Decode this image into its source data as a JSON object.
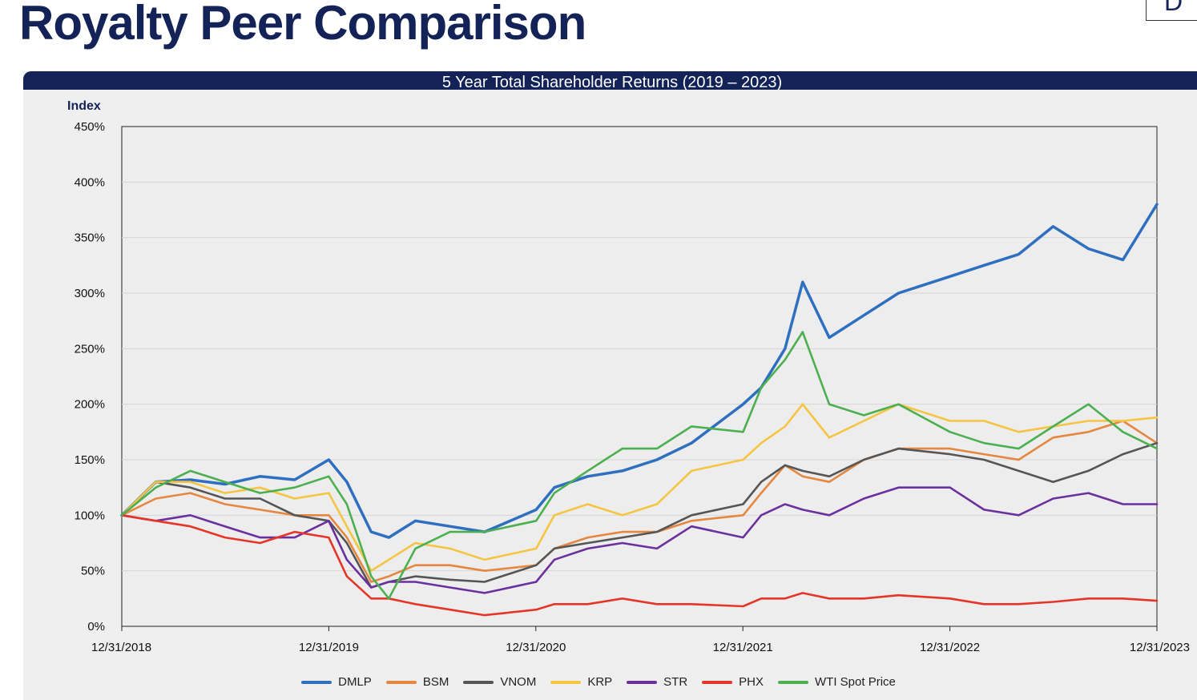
{
  "page": {
    "title": "Royalty Peer Comparison",
    "logo_text": "D"
  },
  "chart_data": {
    "type": "line",
    "title": "5 Year Total Shareholder Returns (2019 – 2023)",
    "ylabel": "Index",
    "xlabel": "",
    "ylim": [
      0,
      450
    ],
    "yticks": [
      "0%",
      "50%",
      "100%",
      "150%",
      "200%",
      "250%",
      "300%",
      "350%",
      "400%",
      "450%"
    ],
    "xlim": [
      "2018-12-31",
      "2023-12-31"
    ],
    "xticks": [
      "12/31/2018",
      "12/31/2019",
      "12/31/2020",
      "12/31/2021",
      "12/31/2022",
      "12/31/2023"
    ],
    "grid": "horizontal",
    "legend": "bottom",
    "x": [
      "2018-12-31",
      "2019-03-01",
      "2019-05-01",
      "2019-07-01",
      "2019-09-01",
      "2019-11-01",
      "2019-12-31",
      "2020-02-01",
      "2020-03-15",
      "2020-04-15",
      "2020-06-01",
      "2020-08-01",
      "2020-10-01",
      "2020-12-31",
      "2021-02-01",
      "2021-04-01",
      "2021-06-01",
      "2021-08-01",
      "2021-10-01",
      "2021-12-31",
      "2022-02-01",
      "2022-03-15",
      "2022-04-15",
      "2022-06-01",
      "2022-08-01",
      "2022-10-01",
      "2022-12-31",
      "2023-03-01",
      "2023-05-01",
      "2023-07-01",
      "2023-09-01",
      "2023-11-01",
      "2023-12-31"
    ],
    "series": [
      {
        "name": "DMLP",
        "color": "#2f6fc0",
        "values": [
          100,
          130,
          132,
          128,
          135,
          132,
          150,
          130,
          85,
          80,
          95,
          90,
          85,
          105,
          125,
          135,
          140,
          150,
          165,
          200,
          215,
          250,
          310,
          260,
          280,
          300,
          315,
          325,
          335,
          360,
          340,
          330,
          380
        ]
      },
      {
        "name": "BSM",
        "color": "#e5873f",
        "values": [
          100,
          115,
          120,
          110,
          105,
          100,
          100,
          80,
          40,
          45,
          55,
          55,
          50,
          55,
          70,
          80,
          85,
          85,
          95,
          100,
          120,
          145,
          135,
          130,
          150,
          160,
          160,
          155,
          150,
          170,
          175,
          185,
          165
        ]
      },
      {
        "name": "VNOM",
        "color": "#555555",
        "values": [
          100,
          130,
          125,
          115,
          115,
          100,
          95,
          75,
          35,
          40,
          45,
          42,
          40,
          55,
          70,
          75,
          80,
          85,
          100,
          110,
          130,
          145,
          140,
          135,
          150,
          160,
          155,
          150,
          140,
          130,
          140,
          155,
          165
        ]
      },
      {
        "name": "KRP",
        "color": "#f5c542",
        "values": [
          100,
          130,
          130,
          120,
          125,
          115,
          120,
          90,
          50,
          60,
          75,
          70,
          60,
          70,
          100,
          110,
          100,
          110,
          140,
          150,
          165,
          180,
          200,
          170,
          185,
          200,
          185,
          185,
          175,
          180,
          185,
          185,
          188
        ]
      },
      {
        "name": "STR",
        "color": "#6b2f9e",
        "values": [
          100,
          95,
          100,
          90,
          80,
          80,
          95,
          60,
          35,
          40,
          40,
          35,
          30,
          40,
          60,
          70,
          75,
          70,
          90,
          80,
          100,
          110,
          105,
          100,
          115,
          125,
          125,
          105,
          100,
          115,
          120,
          110,
          110
        ]
      },
      {
        "name": "PHX",
        "color": "#e53528",
        "values": [
          100,
          95,
          90,
          80,
          75,
          85,
          80,
          45,
          25,
          25,
          20,
          15,
          10,
          15,
          20,
          20,
          25,
          20,
          20,
          18,
          25,
          25,
          30,
          25,
          25,
          28,
          25,
          20,
          20,
          22,
          25,
          25,
          23
        ]
      },
      {
        "name": "WTI Spot Price",
        "color": "#4caf50",
        "values": [
          100,
          125,
          140,
          130,
          120,
          125,
          135,
          110,
          45,
          25,
          70,
          85,
          85,
          95,
          120,
          140,
          160,
          160,
          180,
          175,
          215,
          240,
          265,
          200,
          190,
          200,
          175,
          165,
          160,
          180,
          200,
          175,
          160
        ]
      }
    ]
  }
}
